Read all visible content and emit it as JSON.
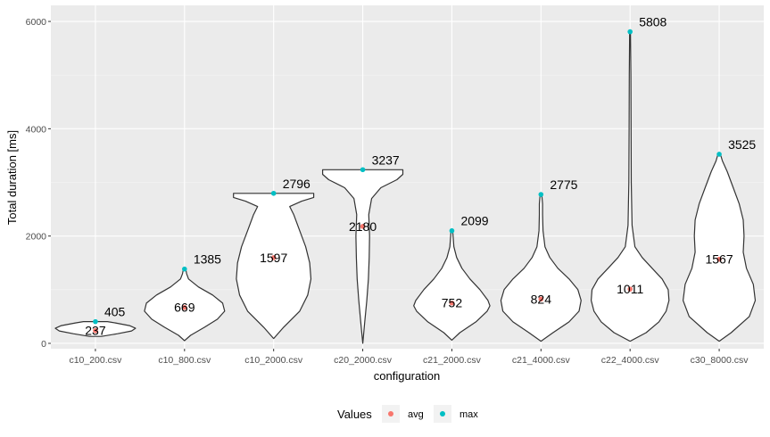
{
  "chart_data": {
    "type": "violin",
    "xlabel": "configuration",
    "ylabel": "Total duration [ms]",
    "ylim": [
      -100,
      6300
    ],
    "yticks": [
      0,
      2000,
      4000,
      6000
    ],
    "grid": true,
    "legend": {
      "position": "bottom",
      "title": "Values",
      "entries": [
        {
          "name": "avg",
          "color": "#F8766D"
        },
        {
          "name": "max",
          "color": "#00BFC4"
        }
      ]
    },
    "categories": [
      "c10_200.csv",
      "c10_800.csv",
      "c10_2000.csv",
      "c20_2000.csv",
      "c21_2000.csv",
      "c21_4000.csv",
      "c22_4000.csv",
      "c30_8000.csv"
    ],
    "series": [
      {
        "name": "avg",
        "values": [
          237,
          669,
          1597,
          2180,
          752,
          824,
          1011,
          1567
        ]
      },
      {
        "name": "max",
        "values": [
          405,
          1385,
          2796,
          3237,
          2099,
          2775,
          5808,
          3525
        ]
      }
    ],
    "labels": {
      "avg": [
        "237",
        "669",
        "1597",
        "2180",
        "752",
        "824",
        "1011",
        "1567"
      ],
      "max": [
        "405",
        "1385",
        "2796",
        "3237",
        "2099",
        "2775",
        "5808",
        "3525"
      ]
    },
    "violins": [
      {
        "min": 130,
        "max": 405,
        "profile": [
          [
            130,
            0.15
          ],
          [
            180,
            0.55
          ],
          [
            230,
            0.9
          ],
          [
            280,
            1.0
          ],
          [
            330,
            0.85
          ],
          [
            380,
            0.5
          ],
          [
            405,
            0.3
          ]
        ]
      },
      {
        "min": 50,
        "max": 1385,
        "profile": [
          [
            50,
            0.0
          ],
          [
            150,
            0.15
          ],
          [
            300,
            0.5
          ],
          [
            450,
            0.82
          ],
          [
            600,
            1.0
          ],
          [
            750,
            0.95
          ],
          [
            900,
            0.7
          ],
          [
            1050,
            0.35
          ],
          [
            1200,
            0.1
          ],
          [
            1300,
            0.05
          ],
          [
            1385,
            0.03
          ]
        ]
      },
      {
        "min": 90,
        "max": 2796,
        "profile": [
          [
            90,
            0.0
          ],
          [
            300,
            0.25
          ],
          [
            600,
            0.65
          ],
          [
            900,
            0.85
          ],
          [
            1200,
            0.93
          ],
          [
            1500,
            0.9
          ],
          [
            1800,
            0.8
          ],
          [
            2100,
            0.65
          ],
          [
            2400,
            0.5
          ],
          [
            2550,
            0.4
          ],
          [
            2650,
            0.7
          ],
          [
            2720,
            1.0
          ],
          [
            2796,
            1.0
          ]
        ]
      },
      {
        "min": 0,
        "max": 3237,
        "profile": [
          [
            0,
            0.0
          ],
          [
            400,
            0.05
          ],
          [
            800,
            0.1
          ],
          [
            1200,
            0.14
          ],
          [
            1600,
            0.16
          ],
          [
            2000,
            0.17
          ],
          [
            2400,
            0.15
          ],
          [
            2700,
            0.22
          ],
          [
            2900,
            0.45
          ],
          [
            3050,
            0.85
          ],
          [
            3150,
            1.0
          ],
          [
            3237,
            1.0
          ]
        ]
      },
      {
        "min": 60,
        "max": 2099,
        "profile": [
          [
            60,
            0.0
          ],
          [
            200,
            0.2
          ],
          [
            400,
            0.6
          ],
          [
            600,
            0.88
          ],
          [
            700,
            0.95
          ],
          [
            800,
            0.9
          ],
          [
            1000,
            0.7
          ],
          [
            1200,
            0.45
          ],
          [
            1400,
            0.25
          ],
          [
            1600,
            0.12
          ],
          [
            1800,
            0.05
          ],
          [
            2000,
            0.03
          ],
          [
            2099,
            0.02
          ]
        ]
      },
      {
        "min": 40,
        "max": 2775,
        "profile": [
          [
            40,
            0.0
          ],
          [
            200,
            0.3
          ],
          [
            400,
            0.7
          ],
          [
            600,
            0.95
          ],
          [
            800,
            1.0
          ],
          [
            1000,
            0.92
          ],
          [
            1200,
            0.7
          ],
          [
            1400,
            0.42
          ],
          [
            1600,
            0.22
          ],
          [
            1800,
            0.1
          ],
          [
            2100,
            0.05
          ],
          [
            2400,
            0.04
          ],
          [
            2600,
            0.04
          ],
          [
            2775,
            0.02
          ]
        ]
      },
      {
        "min": 40,
        "max": 5808,
        "profile": [
          [
            40,
            0.0
          ],
          [
            200,
            0.4
          ],
          [
            400,
            0.72
          ],
          [
            600,
            0.9
          ],
          [
            800,
            0.97
          ],
          [
            1000,
            0.95
          ],
          [
            1200,
            0.8
          ],
          [
            1400,
            0.55
          ],
          [
            1600,
            0.3
          ],
          [
            1800,
            0.12
          ],
          [
            2200,
            0.05
          ],
          [
            3000,
            0.03
          ],
          [
            4000,
            0.025
          ],
          [
            5000,
            0.02
          ],
          [
            5808,
            0.01
          ]
        ]
      },
      {
        "min": 40,
        "max": 3525,
        "profile": [
          [
            40,
            0.0
          ],
          [
            200,
            0.3
          ],
          [
            500,
            0.75
          ],
          [
            800,
            0.9
          ],
          [
            1100,
            0.85
          ],
          [
            1400,
            0.68
          ],
          [
            1700,
            0.6
          ],
          [
            2000,
            0.62
          ],
          [
            2300,
            0.6
          ],
          [
            2600,
            0.5
          ],
          [
            2900,
            0.35
          ],
          [
            3200,
            0.2
          ],
          [
            3400,
            0.08
          ],
          [
            3525,
            0.03
          ]
        ]
      }
    ]
  }
}
